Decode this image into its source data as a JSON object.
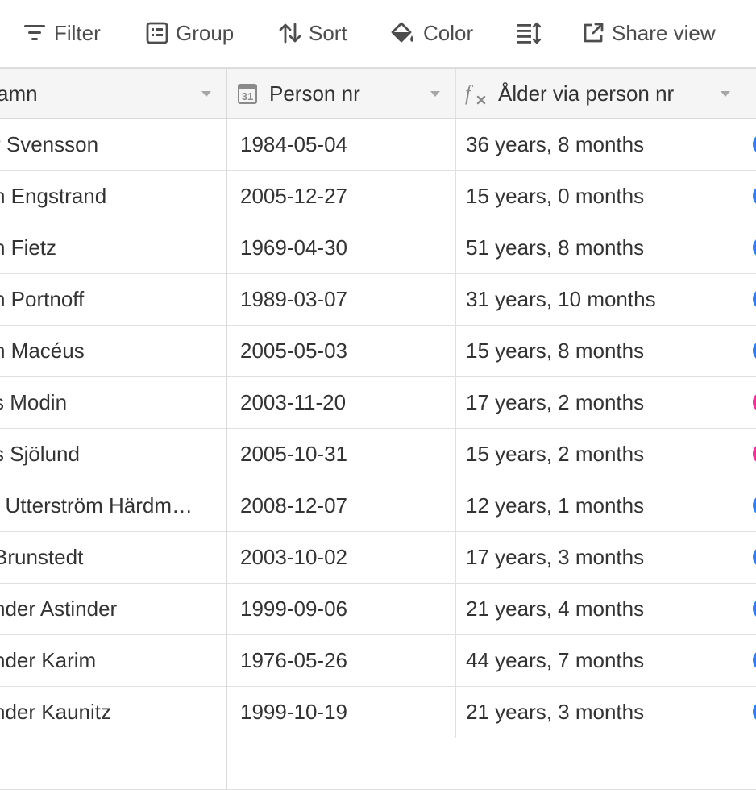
{
  "toolbar": {
    "filter_label": "Filter",
    "group_label": "Group",
    "sort_label": "Sort",
    "color_label": "Color",
    "share_label": "Share view"
  },
  "columns": {
    "name": "amn",
    "pnr": "Person nr",
    "age": "Ålder via person nr",
    "date_icon_text": "31"
  },
  "colors": {
    "blue": "#2d7ff9",
    "pink": "#f82b9c"
  },
  "rows": [
    {
      "name": "r Svensson",
      "pnr": "1984-05-04",
      "age": "36 years, 8 months",
      "tag": "blue"
    },
    {
      "name": "n Engstrand",
      "pnr": "2005-12-27",
      "age": "15 years, 0 months",
      "tag": "blue"
    },
    {
      "name": "n Fietz",
      "pnr": "1969-04-30",
      "age": "51 years, 8 months",
      "tag": "blue"
    },
    {
      "name": "n Portnoff",
      "pnr": "1989-03-07",
      "age": "31 years, 10 months",
      "tag": "blue"
    },
    {
      "name": "n Macéus",
      "pnr": "2005-05-03",
      "age": "15 years, 8 months",
      "tag": "blue"
    },
    {
      "name": "s Modin",
      "pnr": "2003-11-20",
      "age": "17 years, 2 months",
      "tag": "pink"
    },
    {
      "name": "s Sjölund",
      "pnr": "2005-10-31",
      "age": "15 years, 2 months",
      "tag": "pink"
    },
    {
      "name": "t Utterström Härdm…",
      "pnr": "2008-12-07",
      "age": "12 years, 1 months",
      "tag": "blue"
    },
    {
      "name": " Brunstedt",
      "pnr": "2003-10-02",
      "age": "17 years, 3 months",
      "tag": "blue"
    },
    {
      "name": "nder Astinder",
      "pnr": "1999-09-06",
      "age": "21 years, 4 months",
      "tag": "blue"
    },
    {
      "name": "nder Karim",
      "pnr": "1976-05-26",
      "age": "44 years, 7 months",
      "tag": "blue"
    },
    {
      "name": "nder Kaunitz",
      "pnr": "1999-10-19",
      "age": "21 years, 3 months",
      "tag": "blue"
    }
  ]
}
